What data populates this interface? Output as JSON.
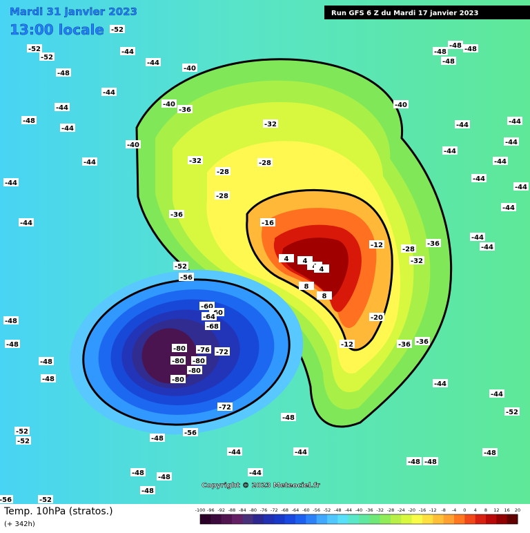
{
  "header": {
    "valid_date": "Mardi 31 janvier 2023",
    "local_time": "13:00 locale",
    "run": "Run GFS 6 Z du Mardi 17 janvier 2023"
  },
  "map": {
    "copyright": "Copyright © 2023 Meteociel.fr",
    "contour_labels": [
      "-52",
      "-52",
      "-52",
      "-44",
      "-44",
      "-48",
      "-44",
      "-44",
      "-48",
      "-44",
      "-44",
      "-44",
      "-44",
      "-40",
      "-36",
      "-40",
      "-40",
      "-32",
      "-32",
      "-28",
      "-28",
      "-28",
      "-36",
      "-16",
      "-12",
      "-28",
      "-32",
      "-36",
      "4",
      "4",
      "4",
      "4",
      "8",
      "8",
      "-20",
      "-12",
      "-36",
      "-36",
      "-52",
      "-56",
      "-60",
      "-60",
      "-64",
      "-68",
      "-80",
      "-76",
      "-72",
      "-80",
      "-80",
      "-80",
      "-80",
      "-72",
      "-56",
      "-48",
      "-48",
      "-44",
      "-44",
      "-44",
      "-44",
      "-44",
      "-40",
      "-48",
      "-48",
      "-48",
      "-48",
      "-44",
      "-44",
      "-44",
      "-44",
      "-44",
      "-44",
      "-48",
      "-48",
      "-48",
      "-48",
      "-52",
      "-52",
      "-48",
      "-48",
      "-48",
      "-44",
      "-44",
      "-44",
      "-48",
      "-48",
      "-48",
      "-52",
      "-44",
      "-52",
      "-56"
    ]
  },
  "legend": {
    "title": "Temp. 10hPa (stratos.)",
    "lead_time": "(+ 342h)",
    "scale": [
      -100,
      -96,
      -92,
      -88,
      -84,
      -80,
      -76,
      -72,
      -68,
      -64,
      -60,
      -56,
      -52,
      -48,
      -44,
      -40,
      -36,
      -32,
      -28,
      -24,
      -20,
      -16,
      -12,
      -8,
      -4,
      0,
      4,
      8,
      12,
      16,
      20
    ],
    "colors": [
      "#2a0028",
      "#3c0a3c",
      "#501450",
      "#642064",
      "#48307a",
      "#2c2890",
      "#2030b0",
      "#1838c8",
      "#1848e0",
      "#1c60f0",
      "#2c80f8",
      "#40a8ff",
      "#50c8ff",
      "#58e0f8",
      "#58e8c8",
      "#60e8a0",
      "#70e878",
      "#90ec58",
      "#b8f048",
      "#d8f840",
      "#f8fc48",
      "#ffe040",
      "#ffc038",
      "#ffa030",
      "#ff7820",
      "#f04818",
      "#d82010",
      "#b80808",
      "#900000",
      "#600000"
    ]
  }
}
